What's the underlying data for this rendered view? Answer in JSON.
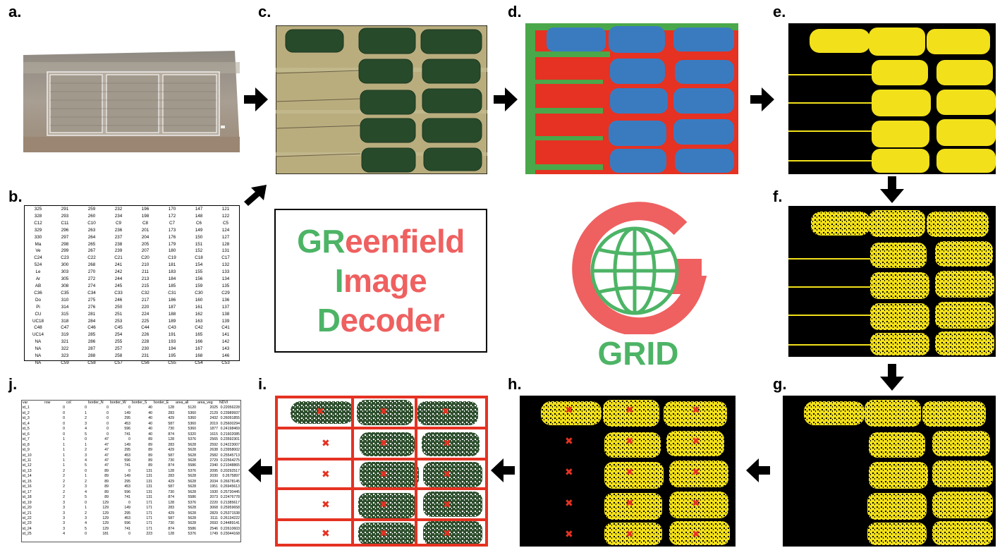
{
  "panel_labels": {
    "a": "a.",
    "b": "b.",
    "c": "c.",
    "d": "d.",
    "e": "e.",
    "f": "f.",
    "g": "g.",
    "h": "h.",
    "i": "i.",
    "j": "j."
  },
  "title": {
    "line1_green": "GR",
    "line1_red": "eenfield",
    "line2_green": "I",
    "line2_red": "mage",
    "line3_green": "D",
    "line3_red": "ecoder"
  },
  "logo": {
    "text": "GRID",
    "ring_color": "#ef6060",
    "globe_color": "#4db466"
  },
  "colors": {
    "green": "#4db466",
    "red": "#ef6060",
    "yellow": "#f2e01a",
    "seg_red": "#e53222",
    "seg_blue": "#3a7bc0",
    "seg_green": "#4aa84a"
  },
  "table_b": {
    "rows": [
      [
        "325",
        "291",
        "259",
        "232",
        "196",
        "170",
        "147",
        "121"
      ],
      [
        "328",
        "293",
        "260",
        "234",
        "198",
        "172",
        "148",
        "122"
      ],
      [
        "C12",
        "C11",
        "C10",
        "C9",
        "C8",
        "C7",
        "C6",
        "C5"
      ],
      [
        "329",
        "296",
        "263",
        "236",
        "201",
        "173",
        "149",
        "124"
      ],
      [
        "330",
        "297",
        "264",
        "237",
        "204",
        "176",
        "150",
        "127"
      ],
      [
        "Ma",
        "298",
        "265",
        "238",
        "205",
        "179",
        "151",
        "128"
      ],
      [
        "Ve",
        "299",
        "267",
        "239",
        "207",
        "180",
        "152",
        "131"
      ],
      [
        "C24",
        "C23",
        "C22",
        "C21",
        "C20",
        "C19",
        "C18",
        "C17"
      ],
      [
        "524",
        "300",
        "268",
        "241",
        "210",
        "181",
        "154",
        "132"
      ],
      [
        "Le",
        "303",
        "270",
        "242",
        "211",
        "183",
        "155",
        "133"
      ],
      [
        "Ar",
        "305",
        "272",
        "244",
        "213",
        "184",
        "156",
        "134"
      ],
      [
        "AB",
        "308",
        "274",
        "245",
        "215",
        "185",
        "159",
        "135"
      ],
      [
        "C36",
        "C35",
        "C34",
        "C33",
        "C32",
        "C31",
        "C30",
        "C29"
      ],
      [
        "Do",
        "310",
        "275",
        "246",
        "217",
        "186",
        "160",
        "136"
      ],
      [
        "Pi",
        "314",
        "276",
        "250",
        "220",
        "187",
        "161",
        "137"
      ],
      [
        "CU",
        "315",
        "281",
        "251",
        "224",
        "188",
        "162",
        "138"
      ],
      [
        "UC18",
        "318",
        "284",
        "253",
        "225",
        "189",
        "163",
        "139"
      ],
      [
        "C48",
        "C47",
        "C46",
        "C45",
        "C44",
        "C43",
        "C42",
        "C41"
      ],
      [
        "UC14",
        "319",
        "285",
        "254",
        "226",
        "191",
        "165",
        "141"
      ],
      [
        "NA",
        "321",
        "286",
        "255",
        "228",
        "193",
        "166",
        "142"
      ],
      [
        "NA",
        "322",
        "287",
        "257",
        "230",
        "194",
        "167",
        "143"
      ],
      [
        "NA",
        "323",
        "288",
        "258",
        "231",
        "195",
        "168",
        "146"
      ],
      [
        "NA",
        "C59",
        "C58",
        "C57",
        "C56",
        "C55",
        "C54",
        "C53"
      ]
    ]
  },
  "table_j": {
    "headers": [
      "var",
      "row",
      "col",
      "border_N",
      "border_W",
      "border_S",
      "border_E",
      "area_all",
      "area_veg",
      "NDVI"
    ],
    "rows": [
      [
        "id_1",
        "0",
        "0",
        "0",
        "0",
        "40",
        "128",
        "5120",
        "2025",
        "0.22056228"
      ],
      [
        "id_2",
        "0",
        "1",
        "0",
        "149",
        "40",
        "283",
        "5360",
        "2129",
        "0.23989937"
      ],
      [
        "id_3",
        "0",
        "2",
        "0",
        "295",
        "40",
        "429",
        "5360",
        "2432",
        "0.26091855"
      ],
      [
        "id_4",
        "0",
        "3",
        "0",
        "453",
        "40",
        "587",
        "5360",
        "2019",
        "0.25600294"
      ],
      [
        "id_5",
        "0",
        "4",
        "0",
        "596",
        "40",
        "730",
        "5360",
        "1877",
        "0.24198469"
      ],
      [
        "id_6",
        "0",
        "5",
        "0",
        "741",
        "40",
        "874",
        "5320",
        "1615",
        "0.21602085"
      ],
      [
        "id_7",
        "1",
        "0",
        "47",
        "0",
        "89",
        "128",
        "5376",
        "2565",
        "0.23592301"
      ],
      [
        "id_8",
        "1",
        "1",
        "47",
        "149",
        "89",
        "283",
        "5628",
        "2592",
        "0.24223007"
      ],
      [
        "id_9",
        "1",
        "2",
        "47",
        "295",
        "89",
        "429",
        "5628",
        "2638",
        "0.23958002"
      ],
      [
        "id_10",
        "1",
        "3",
        "47",
        "453",
        "89",
        "587",
        "5628",
        "2582",
        "0.25545713"
      ],
      [
        "id_11",
        "1",
        "4",
        "47",
        "596",
        "89",
        "730",
        "5628",
        "2729",
        "0.22564275"
      ],
      [
        "id_12",
        "1",
        "5",
        "47",
        "741",
        "89",
        "874",
        "5586",
        "2340",
        "0.21048865"
      ],
      [
        "id_13",
        "2",
        "0",
        "89",
        "0",
        "131",
        "128",
        "5376",
        "2095",
        "0.20292517"
      ],
      [
        "id_14",
        "2",
        "1",
        "89",
        "149",
        "131",
        "283",
        "5628",
        "2030",
        "0.2675897"
      ],
      [
        "id_15",
        "2",
        "2",
        "89",
        "295",
        "131",
        "429",
        "5628",
        "2034",
        "0.26678145"
      ],
      [
        "id_16",
        "2",
        "3",
        "89",
        "453",
        "131",
        "587",
        "5628",
        "1951",
        "0.26945613"
      ],
      [
        "id_17",
        "2",
        "4",
        "89",
        "596",
        "131",
        "730",
        "5628",
        "1930",
        "0.25730445"
      ],
      [
        "id_18",
        "2",
        "5",
        "89",
        "741",
        "131",
        "874",
        "5586",
        "2073",
        "0.22476778"
      ],
      [
        "id_19",
        "3",
        "0",
        "129",
        "0",
        "171",
        "128",
        "5376",
        "2220",
        "0.21385617"
      ],
      [
        "id_20",
        "3",
        "1",
        "129",
        "149",
        "171",
        "283",
        "5628",
        "3068",
        "0.25959658"
      ],
      [
        "id_21",
        "3",
        "2",
        "129",
        "295",
        "171",
        "429",
        "5628",
        "2829",
        "0.25371538"
      ],
      [
        "id_22",
        "3",
        "3",
        "129",
        "453",
        "171",
        "587",
        "5628",
        "3111",
        "0.26134222"
      ],
      [
        "id_23",
        "3",
        "4",
        "129",
        "596",
        "171",
        "730",
        "5628",
        "2693",
        "0.24489141"
      ],
      [
        "id_24",
        "3",
        "5",
        "129",
        "741",
        "171",
        "874",
        "5586",
        "2546",
        "0.22610603"
      ],
      [
        "id_25",
        "4",
        "0",
        "181",
        "0",
        "223",
        "128",
        "5376",
        "1749",
        "0.23044168"
      ]
    ]
  }
}
